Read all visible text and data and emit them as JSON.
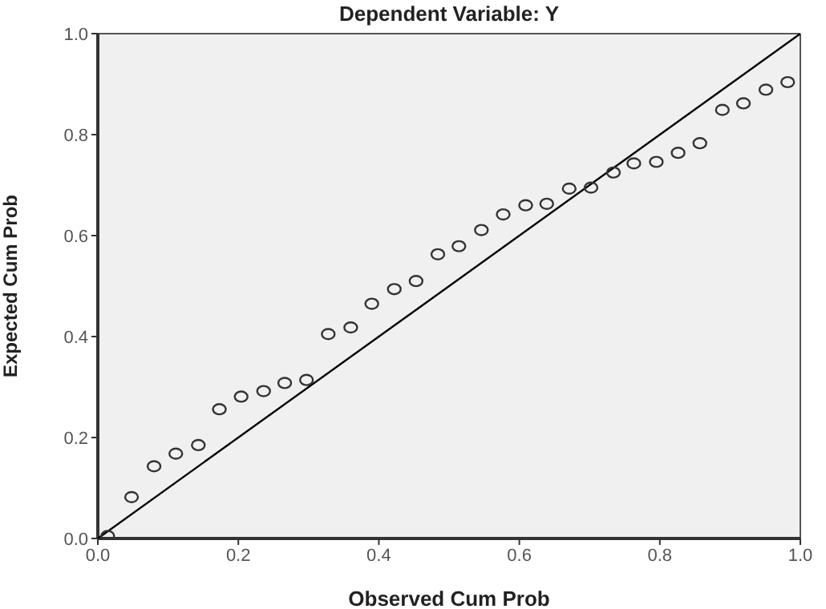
{
  "chart_data": {
    "type": "scatter",
    "title": "Dependent Variable: Y",
    "xlabel": "Observed Cum Prob",
    "ylabel": "Expected Cum Prob",
    "xlim": [
      0,
      1
    ],
    "ylim": [
      0,
      1
    ],
    "xticks": [
      {
        "value": 0,
        "label": "0.0"
      },
      0.2,
      0.4,
      0.6,
      0.8,
      {
        "value": 1,
        "label": "1.0"
      }
    ],
    "yticks": [
      {
        "value": 0,
        "label": "0.0"
      },
      0.2,
      0.4,
      0.6,
      0.8,
      {
        "value": 1,
        "label": "1.0"
      }
    ],
    "series": [
      {
        "type": "line",
        "color": "#000000",
        "line_style": "solid",
        "marker": "none",
        "x": [
          0,
          1
        ],
        "values": [
          0,
          1
        ]
      },
      {
        "type": "scatter",
        "color": "#333333",
        "marker": "circle",
        "x": [
          0.014,
          0.048,
          0.08,
          0.111,
          0.143,
          0.173,
          0.204,
          0.236,
          0.266,
          0.297,
          0.328,
          0.36,
          0.39,
          0.422,
          0.453,
          0.484,
          0.514,
          0.546,
          0.577,
          0.609,
          0.639,
          0.671,
          0.702,
          0.734,
          0.763,
          0.795,
          0.826,
          0.857,
          0.889,
          0.919,
          0.951,
          0.982
        ],
        "values": [
          0.005,
          0.082,
          0.143,
          0.168,
          0.185,
          0.256,
          0.281,
          0.292,
          0.308,
          0.314,
          0.405,
          0.418,
          0.465,
          0.494,
          0.51,
          0.563,
          0.579,
          0.611,
          0.642,
          0.66,
          0.663,
          0.693,
          0.695,
          0.725,
          0.743,
          0.746,
          0.764,
          0.783,
          0.849,
          0.862,
          0.889,
          0.904
        ]
      }
    ]
  }
}
